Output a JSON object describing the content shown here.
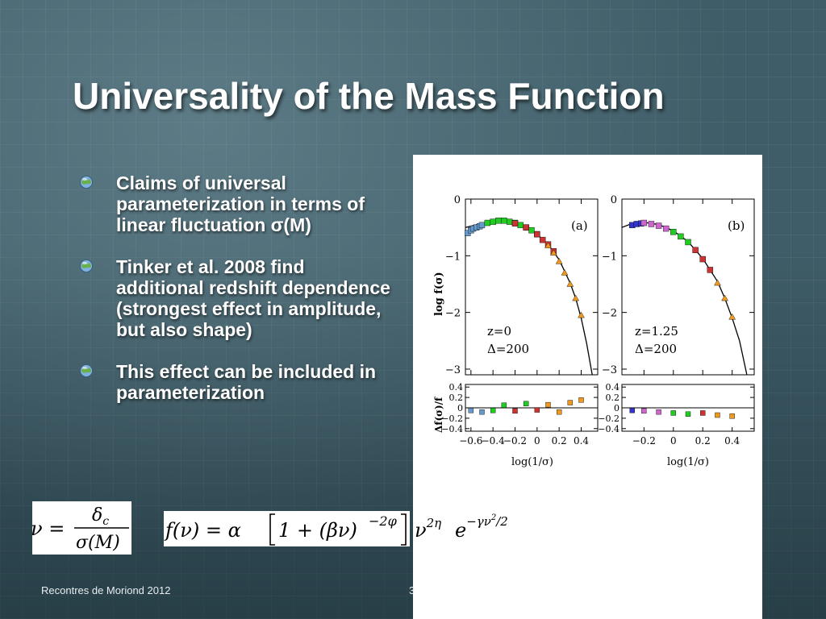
{
  "slide": {
    "title": "Universality of the Mass Function",
    "bullets": [
      "Claims of universal parameterization in terms of linear fluctuation σ(M)",
      "Tinker et al. 2008 find additional redshift dependence (strongest effect in amplitude, but also shape)",
      "This effect can be included in parameterization"
    ],
    "footer_left": "Recontres de Moriond 2012",
    "footer_right": "3"
  },
  "equations": {
    "nu_lhs": "ν =",
    "nu_numerator": "δ",
    "nu_numerator_sub": "c",
    "nu_denominator": "σ(M)",
    "f_lhs": "f(ν) = α",
    "f_bracket": "1 + (βν)",
    "f_bracket_exp": "−2φ",
    "f_nu_term": "ν",
    "f_nu_exp": "2η",
    "f_e_term": "e",
    "f_e_exp": "−γν",
    "f_e_exp_sq": "2",
    "f_e_exp_div": "/2"
  },
  "chart_data": [
    {
      "type": "scatter",
      "panel_label": "(a)",
      "annotations": [
        "z=0",
        "Δ=200"
      ],
      "ylabel": "log  f(σ)",
      "xlim": [
        -0.65,
        0.55
      ],
      "ylim": [
        -3.1,
        0
      ],
      "yticks": [
        0,
        -1,
        -2,
        -3
      ],
      "series": [
        {
          "color": "#888888",
          "kind": "curve",
          "x": [
            -0.65,
            -0.5,
            -0.4,
            -0.3,
            -0.2,
            -0.1,
            0.0,
            0.1,
            0.2,
            0.3,
            0.35,
            0.4,
            0.45,
            0.5
          ],
          "y": [
            -0.5,
            -0.43,
            -0.4,
            -0.39,
            -0.42,
            -0.5,
            -0.62,
            -0.8,
            -1.07,
            -1.48,
            -1.75,
            -2.1,
            -2.55,
            -3.1
          ]
        },
        {
          "color": "#6699cc",
          "kind": "points",
          "x": [
            -0.63,
            -0.6,
            -0.58,
            -0.55,
            -0.52,
            -0.5
          ],
          "y": [
            -0.6,
            -0.55,
            -0.52,
            -0.5,
            -0.48,
            -0.46
          ]
        },
        {
          "color": "#22cc22",
          "kind": "points",
          "x": [
            -0.45,
            -0.4,
            -0.35,
            -0.3,
            -0.25,
            -0.2,
            -0.15,
            -0.1,
            -0.05,
            0.0
          ],
          "y": [
            -0.42,
            -0.4,
            -0.38,
            -0.38,
            -0.4,
            -0.42,
            -0.46,
            -0.5,
            -0.55,
            -0.62
          ]
        },
        {
          "color": "#cc3333",
          "kind": "points",
          "x": [
            -0.2,
            -0.1,
            0.0,
            0.05,
            0.1,
            0.15
          ],
          "y": [
            -0.43,
            -0.5,
            -0.62,
            -0.72,
            -0.8,
            -0.92
          ]
        },
        {
          "color": "#ee9922",
          "kind": "points",
          "x": [
            0.1,
            0.15,
            0.2,
            0.25,
            0.3,
            0.35,
            0.4
          ],
          "y": [
            -0.82,
            -0.95,
            -1.1,
            -1.3,
            -1.5,
            -1.75,
            -2.05
          ]
        }
      ],
      "residual": {
        "ylabel": "Δf(σ)/f",
        "ylim": [
          -0.45,
          0.45
        ],
        "yticks": [
          0.4,
          0.2,
          0,
          -0.2,
          -0.4
        ],
        "xticks": [
          -0.6,
          -0.4,
          -0.2,
          0,
          0.2,
          0.4
        ],
        "xlabel": "log(1/σ)",
        "points": [
          {
            "x": -0.6,
            "y": -0.05,
            "color": "#6699cc"
          },
          {
            "x": -0.5,
            "y": -0.08,
            "color": "#6699cc"
          },
          {
            "x": -0.4,
            "y": -0.05,
            "color": "#22cc22"
          },
          {
            "x": -0.3,
            "y": 0.05,
            "color": "#22cc22"
          },
          {
            "x": -0.2,
            "y": -0.06,
            "color": "#cc3333"
          },
          {
            "x": -0.1,
            "y": 0.08,
            "color": "#22cc22"
          },
          {
            "x": 0.0,
            "y": -0.04,
            "color": "#cc3333"
          },
          {
            "x": 0.1,
            "y": 0.06,
            "color": "#ee9922"
          },
          {
            "x": 0.2,
            "y": -0.08,
            "color": "#ee9922"
          },
          {
            "x": 0.3,
            "y": 0.1,
            "color": "#ee9922"
          },
          {
            "x": 0.4,
            "y": 0.15,
            "color": "#ee9922"
          }
        ]
      }
    },
    {
      "type": "scatter",
      "panel_label": "(b)",
      "annotations": [
        "z=1.25",
        "Δ=200"
      ],
      "xlim": [
        -0.35,
        0.55
      ],
      "ylim": [
        -3.1,
        0
      ],
      "yticks": [
        0,
        -1,
        -2,
        -3
      ],
      "series": [
        {
          "color": "#888888",
          "kind": "curve",
          "x": [
            -0.35,
            -0.3,
            -0.2,
            -0.1,
            0.0,
            0.1,
            0.2,
            0.3,
            0.35,
            0.4,
            0.45,
            0.5
          ],
          "y": [
            -0.5,
            -0.45,
            -0.41,
            -0.45,
            -0.56,
            -0.75,
            -1.05,
            -1.45,
            -1.75,
            -2.1,
            -2.5,
            -3.1
          ]
        },
        {
          "color": "#3333cc",
          "kind": "points",
          "x": [
            -0.28,
            -0.25,
            -0.22
          ],
          "y": [
            -0.46,
            -0.44,
            -0.43
          ]
        },
        {
          "color": "#cc66cc",
          "kind": "points",
          "x": [
            -0.2,
            -0.15,
            -0.1,
            -0.05
          ],
          "y": [
            -0.42,
            -0.44,
            -0.47,
            -0.52
          ]
        },
        {
          "color": "#22cc22",
          "kind": "points",
          "x": [
            0.0,
            0.05,
            0.1
          ],
          "y": [
            -0.58,
            -0.66,
            -0.76
          ]
        },
        {
          "color": "#cc3333",
          "kind": "points",
          "x": [
            0.15,
            0.2,
            0.25
          ],
          "y": [
            -0.9,
            -1.06,
            -1.25
          ]
        },
        {
          "color": "#ee9922",
          "kind": "points",
          "x": [
            0.3,
            0.35,
            0.4
          ],
          "y": [
            -1.48,
            -1.75,
            -2.08
          ]
        }
      ],
      "residual": {
        "ylim": [
          -0.45,
          0.45
        ],
        "yticks": [
          0.4,
          0.2,
          0,
          -0.2,
          -0.4
        ],
        "xticks": [
          -0.2,
          0,
          0.2,
          0.4
        ],
        "xlabel": "log(1/σ)",
        "points": [
          {
            "x": -0.28,
            "y": -0.05,
            "color": "#3333cc"
          },
          {
            "x": -0.2,
            "y": -0.06,
            "color": "#cc66cc"
          },
          {
            "x": -0.1,
            "y": -0.08,
            "color": "#cc66cc"
          },
          {
            "x": 0.0,
            "y": -0.1,
            "color": "#22cc22"
          },
          {
            "x": 0.1,
            "y": -0.12,
            "color": "#22cc22"
          },
          {
            "x": 0.2,
            "y": -0.1,
            "color": "#cc3333"
          },
          {
            "x": 0.3,
            "y": -0.14,
            "color": "#ee9922"
          },
          {
            "x": 0.4,
            "y": -0.16,
            "color": "#ee9922"
          }
        ]
      }
    }
  ]
}
